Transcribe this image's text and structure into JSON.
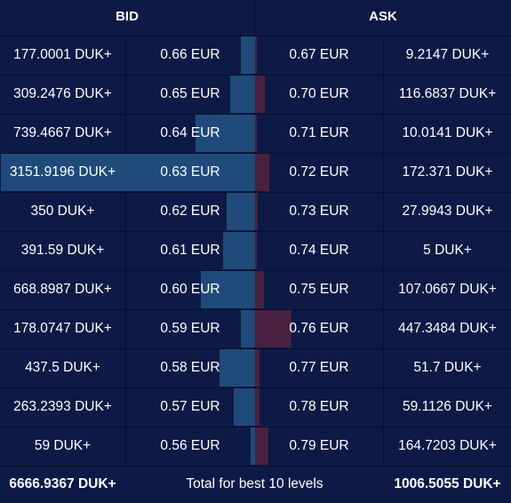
{
  "header": {
    "bid_label": "BID",
    "ask_label": "ASK"
  },
  "max_volume": 3151.9196,
  "levels": [
    {
      "bid_volume": "177.0001 DUK+",
      "bid_volume_num": 177.0001,
      "bid_price": "0.66 EUR",
      "ask_price": "0.67 EUR",
      "ask_volume": "9.2147 DUK+",
      "ask_volume_num": 9.2147
    },
    {
      "bid_volume": "309.2476 DUK+",
      "bid_volume_num": 309.2476,
      "bid_price": "0.65 EUR",
      "ask_price": "0.70 EUR",
      "ask_volume": "116.6837 DUK+",
      "ask_volume_num": 116.6837
    },
    {
      "bid_volume": "739.4667 DUK+",
      "bid_volume_num": 739.4667,
      "bid_price": "0.64 EUR",
      "ask_price": "0.71 EUR",
      "ask_volume": "10.0141 DUK+",
      "ask_volume_num": 10.0141
    },
    {
      "bid_volume": "3151.9196 DUK+",
      "bid_volume_num": 3151.9196,
      "bid_price": "0.63 EUR",
      "ask_price": "0.72 EUR",
      "ask_volume": "172.371 DUK+",
      "ask_volume_num": 172.371
    },
    {
      "bid_volume": "350 DUK+",
      "bid_volume_num": 350,
      "bid_price": "0.62 EUR",
      "ask_price": "0.73 EUR",
      "ask_volume": "27.9943 DUK+",
      "ask_volume_num": 27.9943
    },
    {
      "bid_volume": "391.59 DUK+",
      "bid_volume_num": 391.59,
      "bid_price": "0.61 EUR",
      "ask_price": "0.74 EUR",
      "ask_volume": "5 DUK+",
      "ask_volume_num": 5
    },
    {
      "bid_volume": "668.8987 DUK+",
      "bid_volume_num": 668.8987,
      "bid_price": "0.60 EUR",
      "ask_price": "0.75 EUR",
      "ask_volume": "107.0667 DUK+",
      "ask_volume_num": 107.0667
    },
    {
      "bid_volume": "178.0747 DUK+",
      "bid_volume_num": 178.0747,
      "bid_price": "0.59 EUR",
      "ask_price": "0.76 EUR",
      "ask_volume": "447.3484 DUK+",
      "ask_volume_num": 447.3484
    },
    {
      "bid_volume": "437.5 DUK+",
      "bid_volume_num": 437.5,
      "bid_price": "0.58 EUR",
      "ask_price": "0.77 EUR",
      "ask_volume": "51.7 DUK+",
      "ask_volume_num": 51.7
    },
    {
      "bid_volume": "263.2393 DUK+",
      "bid_volume_num": 263.2393,
      "bid_price": "0.57 EUR",
      "ask_price": "0.78 EUR",
      "ask_volume": "59.1126 DUK+",
      "ask_volume_num": 59.1126
    },
    {
      "bid_volume": "59 DUK+",
      "bid_volume_num": 59,
      "bid_price": "0.56 EUR",
      "ask_price": "0.79 EUR",
      "ask_volume": "164.7203 DUK+",
      "ask_volume_num": 164.7203
    }
  ],
  "footer": {
    "bid_total": "6666.9367 DUK+",
    "label": "Total for best 10 levels",
    "ask_total": "1006.5055 DUK+"
  },
  "colors": {
    "background": "#0c1a45",
    "bid_bar": "#1f4a7a",
    "ask_bar": "#4a2140",
    "grid": "#06102c"
  }
}
